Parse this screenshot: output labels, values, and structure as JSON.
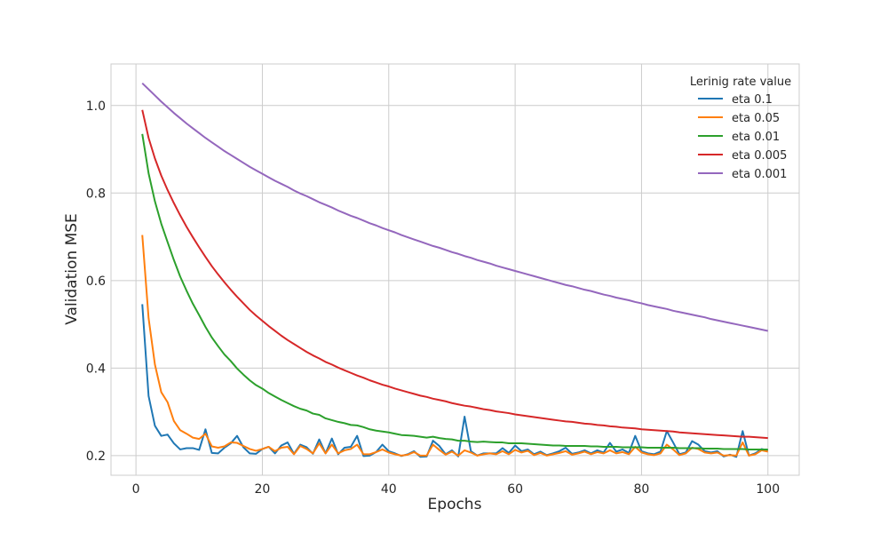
{
  "chart_data": {
    "type": "line",
    "xlabel": "Epochs",
    "ylabel": "Validation MSE",
    "xlim": [
      -3.95,
      104.95
    ],
    "ylim": [
      0.155,
      1.095
    ],
    "xticks": [
      0,
      20,
      40,
      60,
      80,
      100
    ],
    "yticks": [
      0.2,
      0.4,
      0.6,
      0.8,
      1.0
    ],
    "xtick_labels": [
      "0",
      "20",
      "40",
      "60",
      "80",
      "100"
    ],
    "ytick_labels": [
      "0.2",
      "0.4",
      "0.6",
      "0.8",
      "1.0"
    ],
    "grid": true,
    "legend": {
      "title": "Lerinig rate value",
      "placement": "top-right"
    },
    "x": [
      1,
      2,
      3,
      4,
      5,
      6,
      7,
      8,
      9,
      10,
      11,
      12,
      13,
      14,
      15,
      16,
      17,
      18,
      19,
      20,
      21,
      22,
      23,
      24,
      25,
      26,
      27,
      28,
      29,
      30,
      31,
      32,
      33,
      34,
      35,
      36,
      37,
      38,
      39,
      40,
      41,
      42,
      43,
      44,
      45,
      46,
      47,
      48,
      49,
      50,
      51,
      52,
      53,
      54,
      55,
      56,
      57,
      58,
      59,
      60,
      61,
      62,
      63,
      64,
      65,
      66,
      67,
      68,
      69,
      70,
      71,
      72,
      73,
      74,
      75,
      76,
      77,
      78,
      79,
      80,
      81,
      82,
      83,
      84,
      85,
      86,
      87,
      88,
      89,
      90,
      91,
      92,
      93,
      94,
      95,
      96,
      97,
      98,
      99,
      100
    ],
    "series": [
      {
        "name": "eta 0.1",
        "color": "#1f77b4",
        "values": [
          0.546,
          0.336,
          0.268,
          0.245,
          0.248,
          0.228,
          0.214,
          0.217,
          0.217,
          0.213,
          0.26,
          0.206,
          0.205,
          0.218,
          0.228,
          0.245,
          0.219,
          0.205,
          0.204,
          0.215,
          0.22,
          0.205,
          0.223,
          0.23,
          0.204,
          0.225,
          0.219,
          0.204,
          0.237,
          0.205,
          0.239,
          0.203,
          0.218,
          0.22,
          0.245,
          0.199,
          0.2,
          0.208,
          0.225,
          0.21,
          0.205,
          0.199,
          0.203,
          0.21,
          0.197,
          0.198,
          0.234,
          0.222,
          0.203,
          0.212,
          0.198,
          0.289,
          0.21,
          0.2,
          0.205,
          0.205,
          0.205,
          0.217,
          0.206,
          0.223,
          0.21,
          0.214,
          0.203,
          0.209,
          0.201,
          0.205,
          0.21,
          0.218,
          0.204,
          0.207,
          0.212,
          0.205,
          0.212,
          0.207,
          0.229,
          0.209,
          0.214,
          0.206,
          0.245,
          0.21,
          0.205,
          0.203,
          0.209,
          0.256,
          0.23,
          0.203,
          0.207,
          0.233,
          0.225,
          0.21,
          0.207,
          0.21,
          0.198,
          0.202,
          0.197,
          0.256,
          0.2,
          0.205,
          0.215,
          0.212
        ]
      },
      {
        "name": "eta 0.05",
        "color": "#ff7f0e",
        "values": [
          0.704,
          0.514,
          0.408,
          0.345,
          0.322,
          0.279,
          0.258,
          0.25,
          0.241,
          0.238,
          0.25,
          0.221,
          0.218,
          0.221,
          0.23,
          0.229,
          0.222,
          0.215,
          0.211,
          0.215,
          0.22,
          0.21,
          0.218,
          0.22,
          0.203,
          0.222,
          0.215,
          0.205,
          0.228,
          0.205,
          0.225,
          0.205,
          0.212,
          0.215,
          0.225,
          0.203,
          0.203,
          0.208,
          0.214,
          0.207,
          0.203,
          0.2,
          0.202,
          0.208,
          0.2,
          0.2,
          0.225,
          0.213,
          0.202,
          0.209,
          0.2,
          0.212,
          0.207,
          0.2,
          0.203,
          0.205,
          0.203,
          0.21,
          0.203,
          0.213,
          0.207,
          0.211,
          0.201,
          0.206,
          0.2,
          0.203,
          0.206,
          0.21,
          0.202,
          0.205,
          0.209,
          0.203,
          0.208,
          0.205,
          0.212,
          0.205,
          0.208,
          0.203,
          0.22,
          0.207,
          0.203,
          0.201,
          0.205,
          0.225,
          0.214,
          0.201,
          0.205,
          0.218,
          0.215,
          0.207,
          0.205,
          0.207,
          0.2,
          0.201,
          0.2,
          0.23,
          0.2,
          0.203,
          0.212,
          0.209
        ]
      },
      {
        "name": "eta 0.01",
        "color": "#2ca02c",
        "values": [
          0.935,
          0.845,
          0.781,
          0.73,
          0.688,
          0.647,
          0.609,
          0.577,
          0.547,
          0.521,
          0.494,
          0.47,
          0.45,
          0.431,
          0.416,
          0.399,
          0.385,
          0.372,
          0.361,
          0.353,
          0.343,
          0.335,
          0.327,
          0.32,
          0.313,
          0.307,
          0.303,
          0.296,
          0.293,
          0.285,
          0.281,
          0.277,
          0.274,
          0.27,
          0.269,
          0.265,
          0.26,
          0.257,
          0.255,
          0.253,
          0.25,
          0.247,
          0.246,
          0.245,
          0.243,
          0.241,
          0.243,
          0.24,
          0.238,
          0.237,
          0.234,
          0.234,
          0.232,
          0.231,
          0.232,
          0.231,
          0.23,
          0.23,
          0.228,
          0.228,
          0.228,
          0.227,
          0.226,
          0.225,
          0.224,
          0.223,
          0.223,
          0.222,
          0.222,
          0.222,
          0.222,
          0.221,
          0.221,
          0.22,
          0.22,
          0.22,
          0.219,
          0.219,
          0.219,
          0.219,
          0.218,
          0.218,
          0.218,
          0.218,
          0.218,
          0.217,
          0.217,
          0.217,
          0.217,
          0.216,
          0.216,
          0.216,
          0.215,
          0.215,
          0.215,
          0.215,
          0.214,
          0.214,
          0.214,
          0.214
        ]
      },
      {
        "name": "eta 0.005",
        "color": "#d62728",
        "values": [
          0.99,
          0.926,
          0.879,
          0.84,
          0.807,
          0.777,
          0.749,
          0.723,
          0.699,
          0.676,
          0.654,
          0.633,
          0.614,
          0.596,
          0.579,
          0.563,
          0.548,
          0.533,
          0.52,
          0.508,
          0.496,
          0.485,
          0.474,
          0.464,
          0.455,
          0.446,
          0.437,
          0.429,
          0.422,
          0.414,
          0.408,
          0.401,
          0.395,
          0.389,
          0.383,
          0.378,
          0.372,
          0.367,
          0.362,
          0.358,
          0.353,
          0.349,
          0.345,
          0.341,
          0.337,
          0.334,
          0.33,
          0.327,
          0.324,
          0.32,
          0.317,
          0.314,
          0.312,
          0.309,
          0.306,
          0.304,
          0.301,
          0.299,
          0.297,
          0.294,
          0.292,
          0.29,
          0.288,
          0.286,
          0.284,
          0.282,
          0.28,
          0.278,
          0.277,
          0.275,
          0.273,
          0.272,
          0.27,
          0.269,
          0.267,
          0.266,
          0.264,
          0.263,
          0.262,
          0.26,
          0.259,
          0.258,
          0.257,
          0.256,
          0.255,
          0.253,
          0.252,
          0.251,
          0.25,
          0.249,
          0.248,
          0.247,
          0.246,
          0.245,
          0.244,
          0.243,
          0.243,
          0.242,
          0.241,
          0.24
        ]
      },
      {
        "name": "eta 0.001",
        "color": "#9467bd",
        "values": [
          1.051,
          1.037,
          1.023,
          1.009,
          0.996,
          0.983,
          0.971,
          0.959,
          0.948,
          0.937,
          0.926,
          0.916,
          0.906,
          0.896,
          0.887,
          0.878,
          0.869,
          0.86,
          0.852,
          0.844,
          0.836,
          0.828,
          0.821,
          0.814,
          0.806,
          0.799,
          0.793,
          0.786,
          0.779,
          0.773,
          0.767,
          0.76,
          0.754,
          0.748,
          0.743,
          0.737,
          0.731,
          0.726,
          0.72,
          0.715,
          0.71,
          0.704,
          0.699,
          0.694,
          0.689,
          0.684,
          0.679,
          0.675,
          0.67,
          0.665,
          0.661,
          0.656,
          0.652,
          0.647,
          0.643,
          0.639,
          0.634,
          0.63,
          0.626,
          0.622,
          0.618,
          0.614,
          0.61,
          0.606,
          0.602,
          0.598,
          0.594,
          0.59,
          0.587,
          0.583,
          0.579,
          0.576,
          0.572,
          0.568,
          0.565,
          0.561,
          0.558,
          0.555,
          0.551,
          0.548,
          0.544,
          0.541,
          0.538,
          0.535,
          0.531,
          0.528,
          0.525,
          0.522,
          0.519,
          0.516,
          0.512,
          0.509,
          0.506,
          0.503,
          0.5,
          0.497,
          0.494,
          0.491,
          0.488,
          0.485
        ]
      }
    ]
  }
}
